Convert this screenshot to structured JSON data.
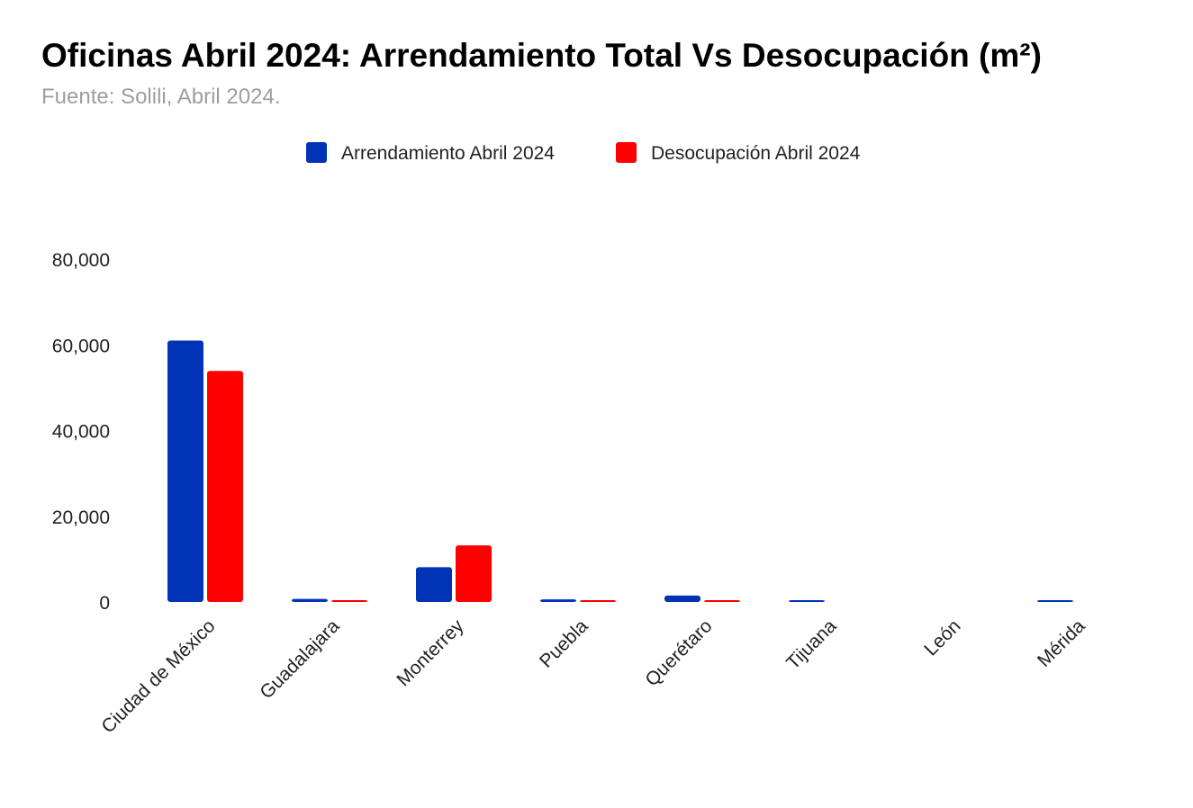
{
  "chart_data": {
    "type": "bar",
    "title": "Oficinas Abril 2024: Arrendamiento Total Vs Desocupación (m²)",
    "subtitle": "Fuente: Solili, Abril 2024.",
    "xlabel": "",
    "ylabel": "",
    "ylim": [
      0,
      80000
    ],
    "yticks": [
      0,
      20000,
      40000,
      60000,
      80000
    ],
    "ytick_labels": [
      "0",
      "20,000",
      "40,000",
      "60,000",
      "80,000"
    ],
    "grid": false,
    "legend_position": "top-center",
    "categories": [
      "Ciudad de México",
      "Guadalajara",
      "Monterrey",
      "Puebla",
      "Querétaro",
      "Tijuana",
      "León",
      "Mérida"
    ],
    "series": [
      {
        "name": "Arrendamiento Abril 2024",
        "color": "#0033b5",
        "values": [
          61000,
          700,
          8100,
          600,
          1500,
          200,
          0,
          250
        ]
      },
      {
        "name": "Desocupación Abril 2024",
        "color": "#ff0000",
        "values": [
          53900,
          350,
          13200,
          300,
          400,
          0,
          0,
          0
        ]
      }
    ]
  }
}
